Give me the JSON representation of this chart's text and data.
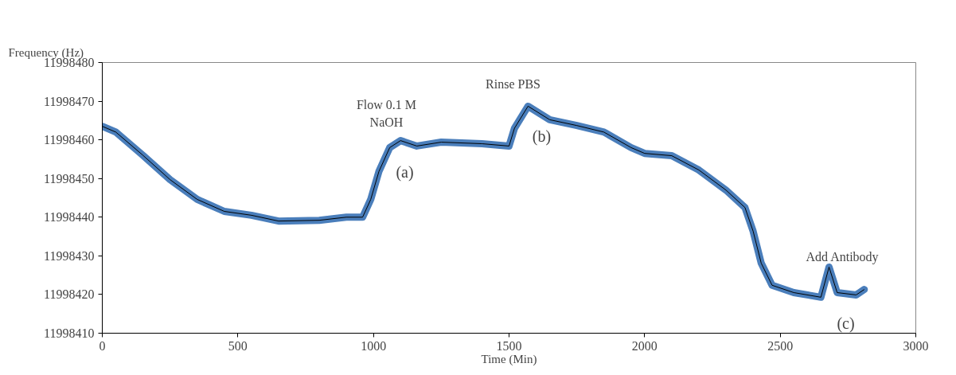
{
  "chart_data": {
    "type": "line",
    "xlabel": "Time (Min)",
    "ylabel": "Frequency (Hz)",
    "x": [
      0,
      50,
      150,
      250,
      350,
      450,
      550,
      650,
      800,
      900,
      960,
      990,
      1020,
      1060,
      1100,
      1160,
      1250,
      1400,
      1500,
      1520,
      1570,
      1650,
      1750,
      1850,
      1950,
      2000,
      2100,
      2200,
      2300,
      2370,
      2400,
      2430,
      2470,
      2550,
      2650,
      2680,
      2710,
      2780,
      2810
    ],
    "series": [
      {
        "color": "#4a7ebb",
        "values": [
          11998463.5,
          11998462,
          11998456,
          11998449.7,
          11998444.6,
          11998441.5,
          11998440.5,
          11998439,
          11998439.2,
          11998440,
          11998440,
          11998444.6,
          11998451.8,
          11998458,
          11998459.8,
          11998458.4,
          11998459.4,
          11998459,
          11998458.4,
          11998463,
          11998468.7,
          11998465.2,
          11998463.7,
          11998462,
          11998458,
          11998456.5,
          11998455.9,
          11998452.2,
          11998447,
          11998442.5,
          11998436.4,
          11998428.1,
          11998422.4,
          11998420.5,
          11998419.3,
          11998427.1,
          11998420.5,
          11998419.9,
          11998421.3
        ]
      }
    ],
    "xlim": [
      0,
      3000
    ],
    "xticks": [
      0,
      500,
      1000,
      1500,
      2000,
      2500,
      3000
    ],
    "ylim": [
      11998410,
      11998480
    ],
    "yticks": [
      11998410,
      11998420,
      11998430,
      11998440,
      11998450,
      11998460,
      11998470,
      11998480
    ],
    "grid": false,
    "annotations": [
      "Flow 0.1 M\nNaOH",
      "(a)",
      "Rinse PBS",
      "(b)",
      "Add Antibody",
      "(c)"
    ]
  }
}
